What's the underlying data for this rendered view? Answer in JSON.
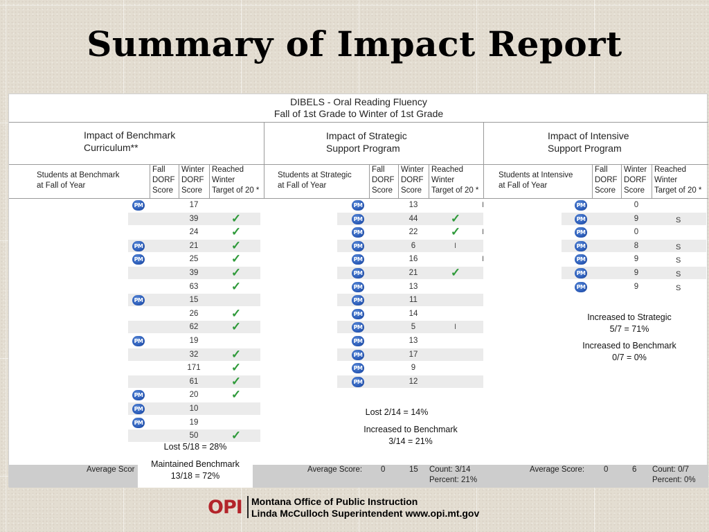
{
  "title": "Summary of Impact Report",
  "report": {
    "heading_line1": "DIBELS - Oral Reading Fluency",
    "heading_line2": "Fall of 1st Grade to Winter of 1st Grade",
    "sections": [
      {
        "title_line1": "Impact of Benchmark",
        "title_line2": "Curriculum**"
      },
      {
        "title_line1": "Impact of Strategic",
        "title_line2": "Support Program"
      },
      {
        "title_line1": "Impact of Intensive",
        "title_line2": "Support Program"
      }
    ],
    "col_students_benchmark": [
      "Students at Benchmark",
      "at Fall of Year"
    ],
    "col_students_strategic": [
      "Students at Strategic",
      "at Fall of Year"
    ],
    "col_students_intensive": [
      "Students at Intensive",
      "at Fall of Year"
    ],
    "col_fall": [
      "Fall",
      "DORF",
      "Score"
    ],
    "col_winter": [
      "Winter",
      "DORF",
      "Score"
    ],
    "col_reached": [
      "Reached",
      "Winter",
      "Target of 20 *"
    ],
    "pm_icon_label": "PM",
    "benchmark_rows": [
      {
        "pm": true,
        "score": "17",
        "check": false
      },
      {
        "pm": false,
        "score": "39",
        "check": true
      },
      {
        "pm": false,
        "score": "24",
        "check": true
      },
      {
        "pm": true,
        "score": "21",
        "check": true
      },
      {
        "pm": true,
        "score": "25",
        "check": true
      },
      {
        "pm": false,
        "score": "39",
        "check": true
      },
      {
        "pm": false,
        "score": "63",
        "check": true
      },
      {
        "pm": true,
        "score": "15",
        "check": false
      },
      {
        "pm": false,
        "score": "26",
        "check": true
      },
      {
        "pm": false,
        "score": "62",
        "check": true
      },
      {
        "pm": true,
        "score": "19",
        "check": false
      },
      {
        "pm": false,
        "score": "32",
        "check": true
      },
      {
        "pm": false,
        "score": "171",
        "check": true
      },
      {
        "pm": false,
        "score": "61",
        "check": true
      },
      {
        "pm": true,
        "score": "20",
        "check": true
      },
      {
        "pm": true,
        "score": "10",
        "check": false
      },
      {
        "pm": true,
        "score": "19",
        "check": false
      },
      {
        "pm": false,
        "score": "50",
        "check": true
      }
    ],
    "strategic_rows": [
      {
        "score": "13",
        "check": false,
        "mark": "I"
      },
      {
        "score": "44",
        "check": true,
        "mark": ""
      },
      {
        "score": "22",
        "check": true,
        "mark": "I"
      },
      {
        "score": "6",
        "check": false,
        "mark": "I"
      },
      {
        "score": "16",
        "check": false,
        "mark": "I"
      },
      {
        "score": "21",
        "check": true,
        "mark": ""
      },
      {
        "score": "13",
        "check": false,
        "mark": ""
      },
      {
        "score": "11",
        "check": false,
        "mark": ""
      },
      {
        "score": "14",
        "check": false,
        "mark": ""
      },
      {
        "score": "5",
        "check": false,
        "mark": "I"
      },
      {
        "score": "13",
        "check": false,
        "mark": ""
      },
      {
        "score": "17",
        "check": false,
        "mark": ""
      },
      {
        "score": "9",
        "check": false,
        "mark": ""
      },
      {
        "score": "12",
        "check": false,
        "mark": ""
      }
    ],
    "intensive_rows": [
      {
        "score": "0",
        "mark": ""
      },
      {
        "score": "9",
        "mark": "S"
      },
      {
        "score": "0",
        "mark": ""
      },
      {
        "score": "8",
        "mark": "S"
      },
      {
        "score": "9",
        "mark": "S"
      },
      {
        "score": "9",
        "mark": "S"
      },
      {
        "score": "9",
        "mark": "S"
      }
    ],
    "notes": {
      "benchmark_lost": "Lost 5/18 = 28%",
      "benchmark_maintained_1": "Maintained Benchmark",
      "benchmark_maintained_2": "13/18 = 72%",
      "strategic_lost": "Lost 2/14 = 14%",
      "strategic_increased_1": "Increased to Benchmark",
      "strategic_increased_2": "3/14 = 21%",
      "intensive_strategic_1": "Increased to Strategic",
      "intensive_strategic_2": "5/7 = 71%",
      "intensive_benchmark_1": "Increased to Benchmark",
      "intensive_benchmark_2": "0/7 = 0%"
    },
    "averages": {
      "label": "Average Score:",
      "benchmark_label_partial": "Average Scor",
      "strategic_fall": "0",
      "strategic_winter": "15",
      "strategic_count": "Count:  3/14",
      "strategic_percent": "Percent:  21%",
      "intensive_fall": "0",
      "intensive_winter": "6",
      "intensive_count": "Count:  0/7",
      "intensive_percent": "Percent: 0%"
    }
  },
  "footer": {
    "logo_text": "OPI",
    "line1": "Montana Office of Public Instruction",
    "line2": "Linda McCulloch Superintendent   www.opi.mt.gov",
    "logo_color": "#b3242a"
  },
  "colors": {
    "check": "#2f9a3a",
    "pm_icon": "#2a5bb8",
    "row_shade": "#ebebeb",
    "avg_bar": "#cdcdcd"
  }
}
